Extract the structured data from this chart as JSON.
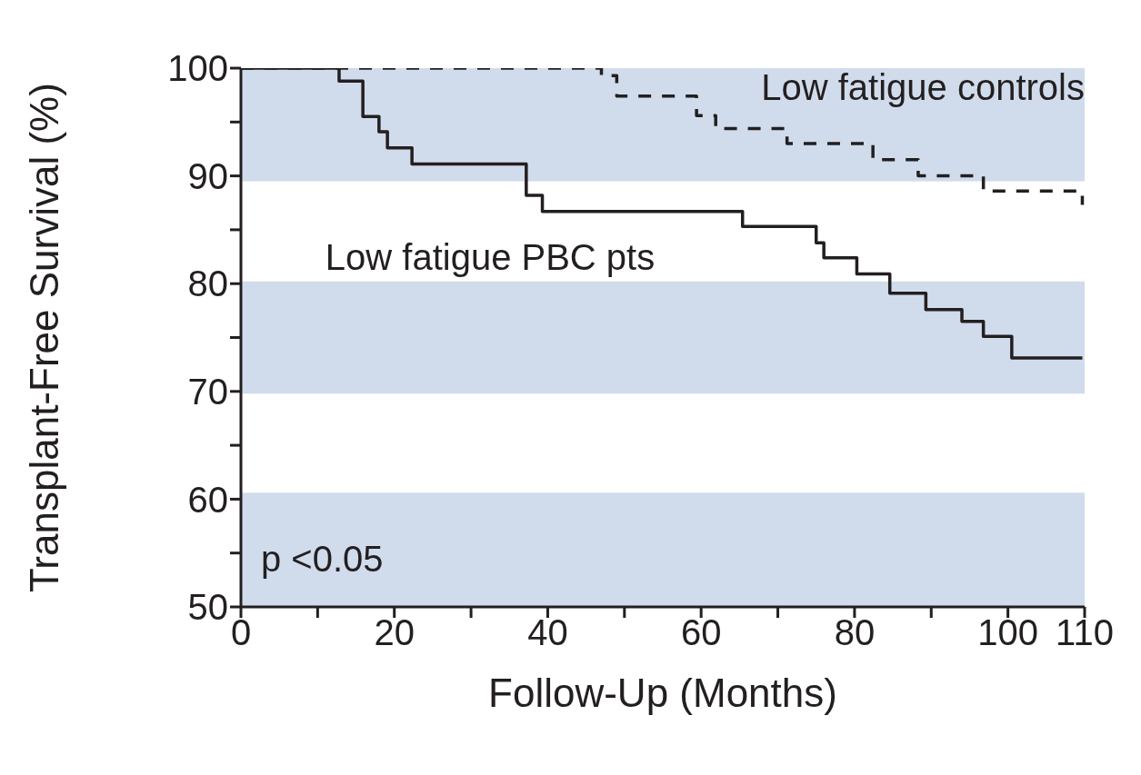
{
  "chart_data": {
    "type": "step",
    "xlabel": "Follow-Up (Months)",
    "ylabel": "Transplant-Free Survival (%)",
    "xlim": [
      0,
      110
    ],
    "ylim": [
      50,
      100
    ],
    "xticks": [
      0,
      {
        "value": 10,
        "label": null
      },
      20,
      {
        "value": 30,
        "label": null
      },
      40,
      {
        "value": 50,
        "label": null
      },
      60,
      {
        "value": 70,
        "label": null
      },
      80,
      {
        "value": 90,
        "label": null
      },
      100,
      110
    ],
    "yticks": [
      50,
      {
        "value": 55,
        "label": null
      },
      60,
      {
        "value": 65,
        "label": null
      },
      70,
      {
        "value": 75,
        "label": null
      },
      80,
      {
        "value": 85,
        "label": null
      },
      90,
      {
        "value": 95,
        "label": null
      },
      100
    ],
    "series": [
      {
        "name": "Low fatigue PBC pts",
        "color": "#231f20",
        "line_style": "solid",
        "x": [
          0,
          12.8,
          15.9,
          18,
          19.1,
          22.3,
          37.2,
          39.3,
          65.4,
          75,
          76,
          80.3,
          84.6,
          89.3,
          94,
          96.8,
          100.5,
          109.7
        ],
        "values": [
          100,
          98.8,
          95.5,
          94.1,
          92.6,
          91.1,
          88.2,
          86.7,
          85.3,
          83.8,
          82.4,
          80.9,
          79.1,
          77.6,
          76.5,
          75.1,
          73.1,
          73.1
        ]
      },
      {
        "name": "Low fatigue controls",
        "color": "#231f20",
        "line_style": "dashed",
        "x": [
          0,
          47,
          49,
          59.4,
          61.9,
          71.2,
          82.4,
          88.3,
          96.8,
          109.7
        ],
        "values": [
          100,
          99.3,
          97.4,
          95.6,
          94.4,
          93,
          91.5,
          90,
          88.6,
          87.3
        ]
      }
    ],
    "bands": [
      {
        "axis": "y",
        "from": 89.5,
        "to": 100,
        "color": "#d0dcec"
      },
      {
        "axis": "y",
        "from": 69.8,
        "to": 80.2,
        "color": "#d0dcec"
      },
      {
        "axis": "y",
        "from": 50,
        "to": 60.6,
        "color": "#d0dcec"
      }
    ],
    "annotations": [
      "p <0.05"
    ]
  }
}
